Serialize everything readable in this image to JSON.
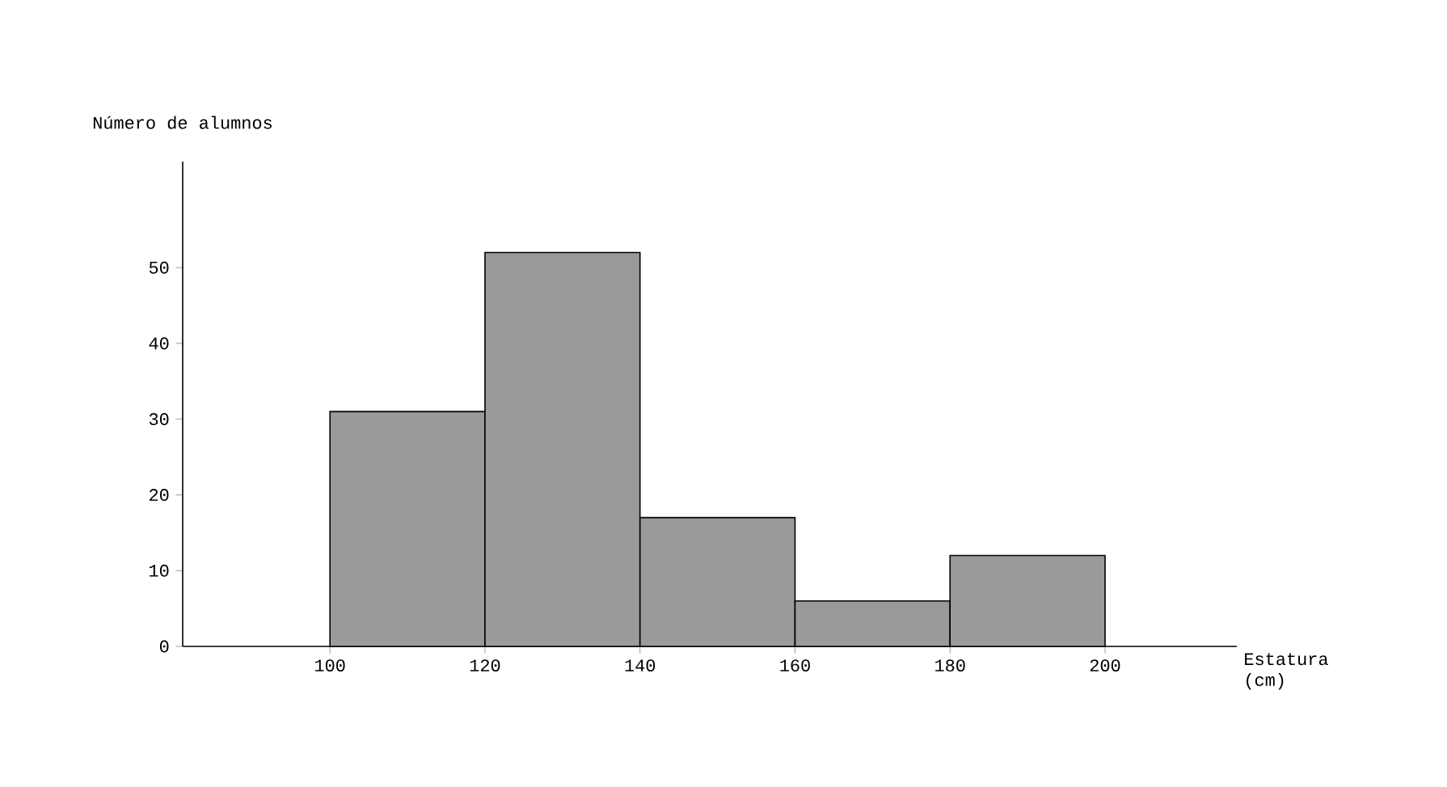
{
  "chart_data": {
    "type": "histogram",
    "xlabel": "Estatura (cm)",
    "ylabel": "Número de alumnos",
    "bins": [
      100,
      120,
      140,
      160,
      180,
      200
    ],
    "values": [
      31,
      52,
      17,
      6,
      12
    ],
    "color": "#9a9a9a",
    "xlim": [
      81,
      217
    ],
    "xticks": [
      100,
      120,
      140,
      160,
      180,
      200
    ],
    "ylim": [
      0,
      64
    ],
    "yticks": [
      0,
      10,
      20,
      30,
      40,
      50
    ]
  }
}
